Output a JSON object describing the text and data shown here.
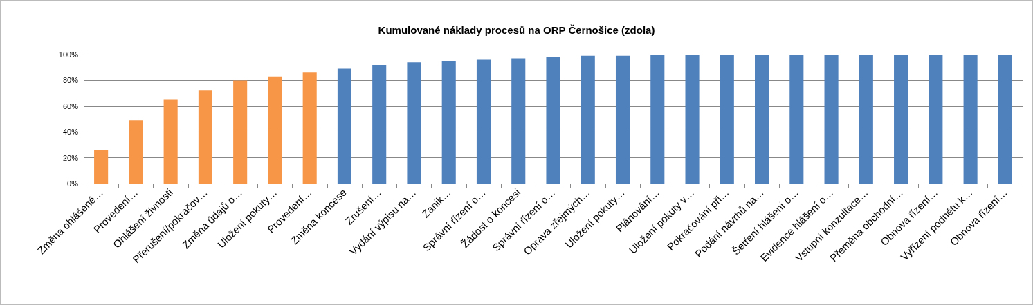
{
  "chart_data": {
    "type": "bar",
    "title": "Kumulované náklady procesů na ORP Černošice (zdola)",
    "categories": [
      "Změna ohlášené…",
      "Provedení…",
      "Ohlášení živnosti",
      "Přerušení/pokračov…",
      "Změna údajů o…",
      "Uložení pokuty…",
      "Provedení…",
      "Změna koncese",
      "Zrušení…",
      "Vydání výpisu na…",
      "Zánik…",
      "Správní řízení o…",
      "Žádost o koncesi",
      "Správní řízení o…",
      "Oprava zřejmých…",
      "Uložení pokuty…",
      "Plánování…",
      "Uložení pokuty v…",
      "Pokračování při…",
      "Podání návrhů na…",
      "Šetření hlášení o…",
      "Evidence hlášení o…",
      "Vstupní konzultace…",
      "Přeměna obchodní…",
      "Obnova řízení…",
      "Vyřízení podnětu k…",
      "Obnova řízení…"
    ],
    "values": [
      26,
      49,
      65,
      72,
      80,
      83,
      86,
      89,
      92,
      94,
      95,
      96,
      97,
      98,
      99,
      99,
      100,
      100,
      100,
      100,
      100,
      100,
      100,
      100,
      100,
      100,
      100
    ],
    "colors": [
      "#f79646",
      "#f79646",
      "#f79646",
      "#f79646",
      "#f79646",
      "#f79646",
      "#f79646",
      "#4f81bd",
      "#4f81bd",
      "#4f81bd",
      "#4f81bd",
      "#4f81bd",
      "#4f81bd",
      "#4f81bd",
      "#4f81bd",
      "#4f81bd",
      "#4f81bd",
      "#4f81bd",
      "#4f81bd",
      "#4f81bd",
      "#4f81bd",
      "#4f81bd",
      "#4f81bd",
      "#4f81bd",
      "#4f81bd",
      "#4f81bd",
      "#4f81bd"
    ],
    "ylim": [
      0,
      100
    ],
    "yticks": [
      {
        "value": 0,
        "label": "0%"
      },
      {
        "value": 20,
        "label": "20%"
      },
      {
        "value": 40,
        "label": "40%"
      },
      {
        "value": 60,
        "label": "60%"
      },
      {
        "value": 80,
        "label": "80%"
      },
      {
        "value": 100,
        "label": "100%"
      }
    ],
    "grid": "y"
  }
}
